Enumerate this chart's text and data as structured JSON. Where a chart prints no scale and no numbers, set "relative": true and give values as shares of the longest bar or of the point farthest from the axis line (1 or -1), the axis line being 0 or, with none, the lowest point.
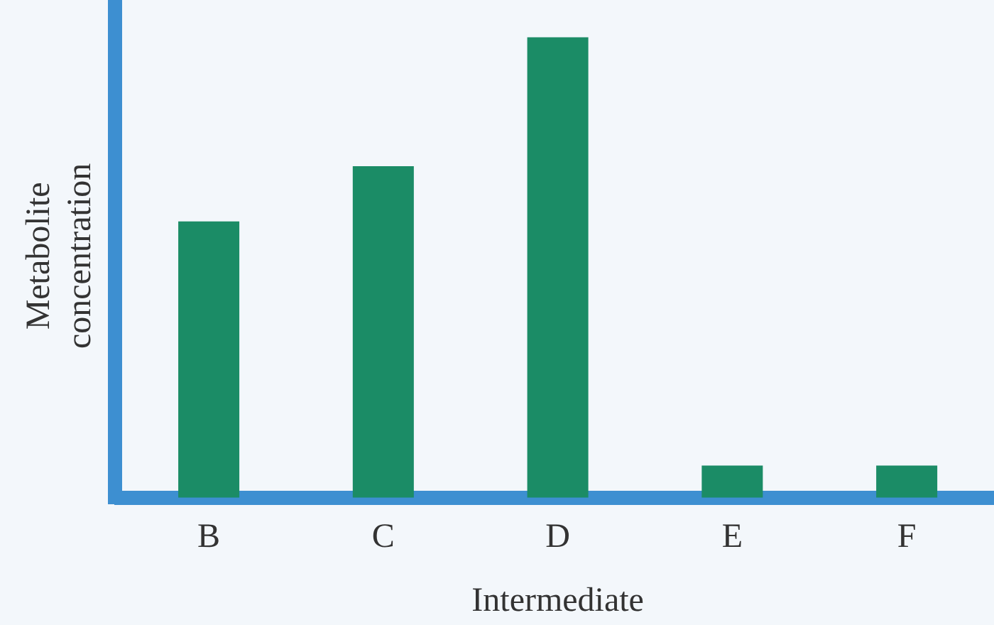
{
  "chart_data": {
    "type": "bar",
    "xlabel": "Intermediate",
    "ylabel": "Metabolite concentration",
    "categories": [
      "B",
      "C",
      "D",
      "E",
      "F"
    ],
    "values": [
      0.6,
      0.72,
      1,
      0.07,
      0.07
    ],
    "color": "#1b8c66",
    "relative": true,
    "grid": false,
    "legend": false
  }
}
